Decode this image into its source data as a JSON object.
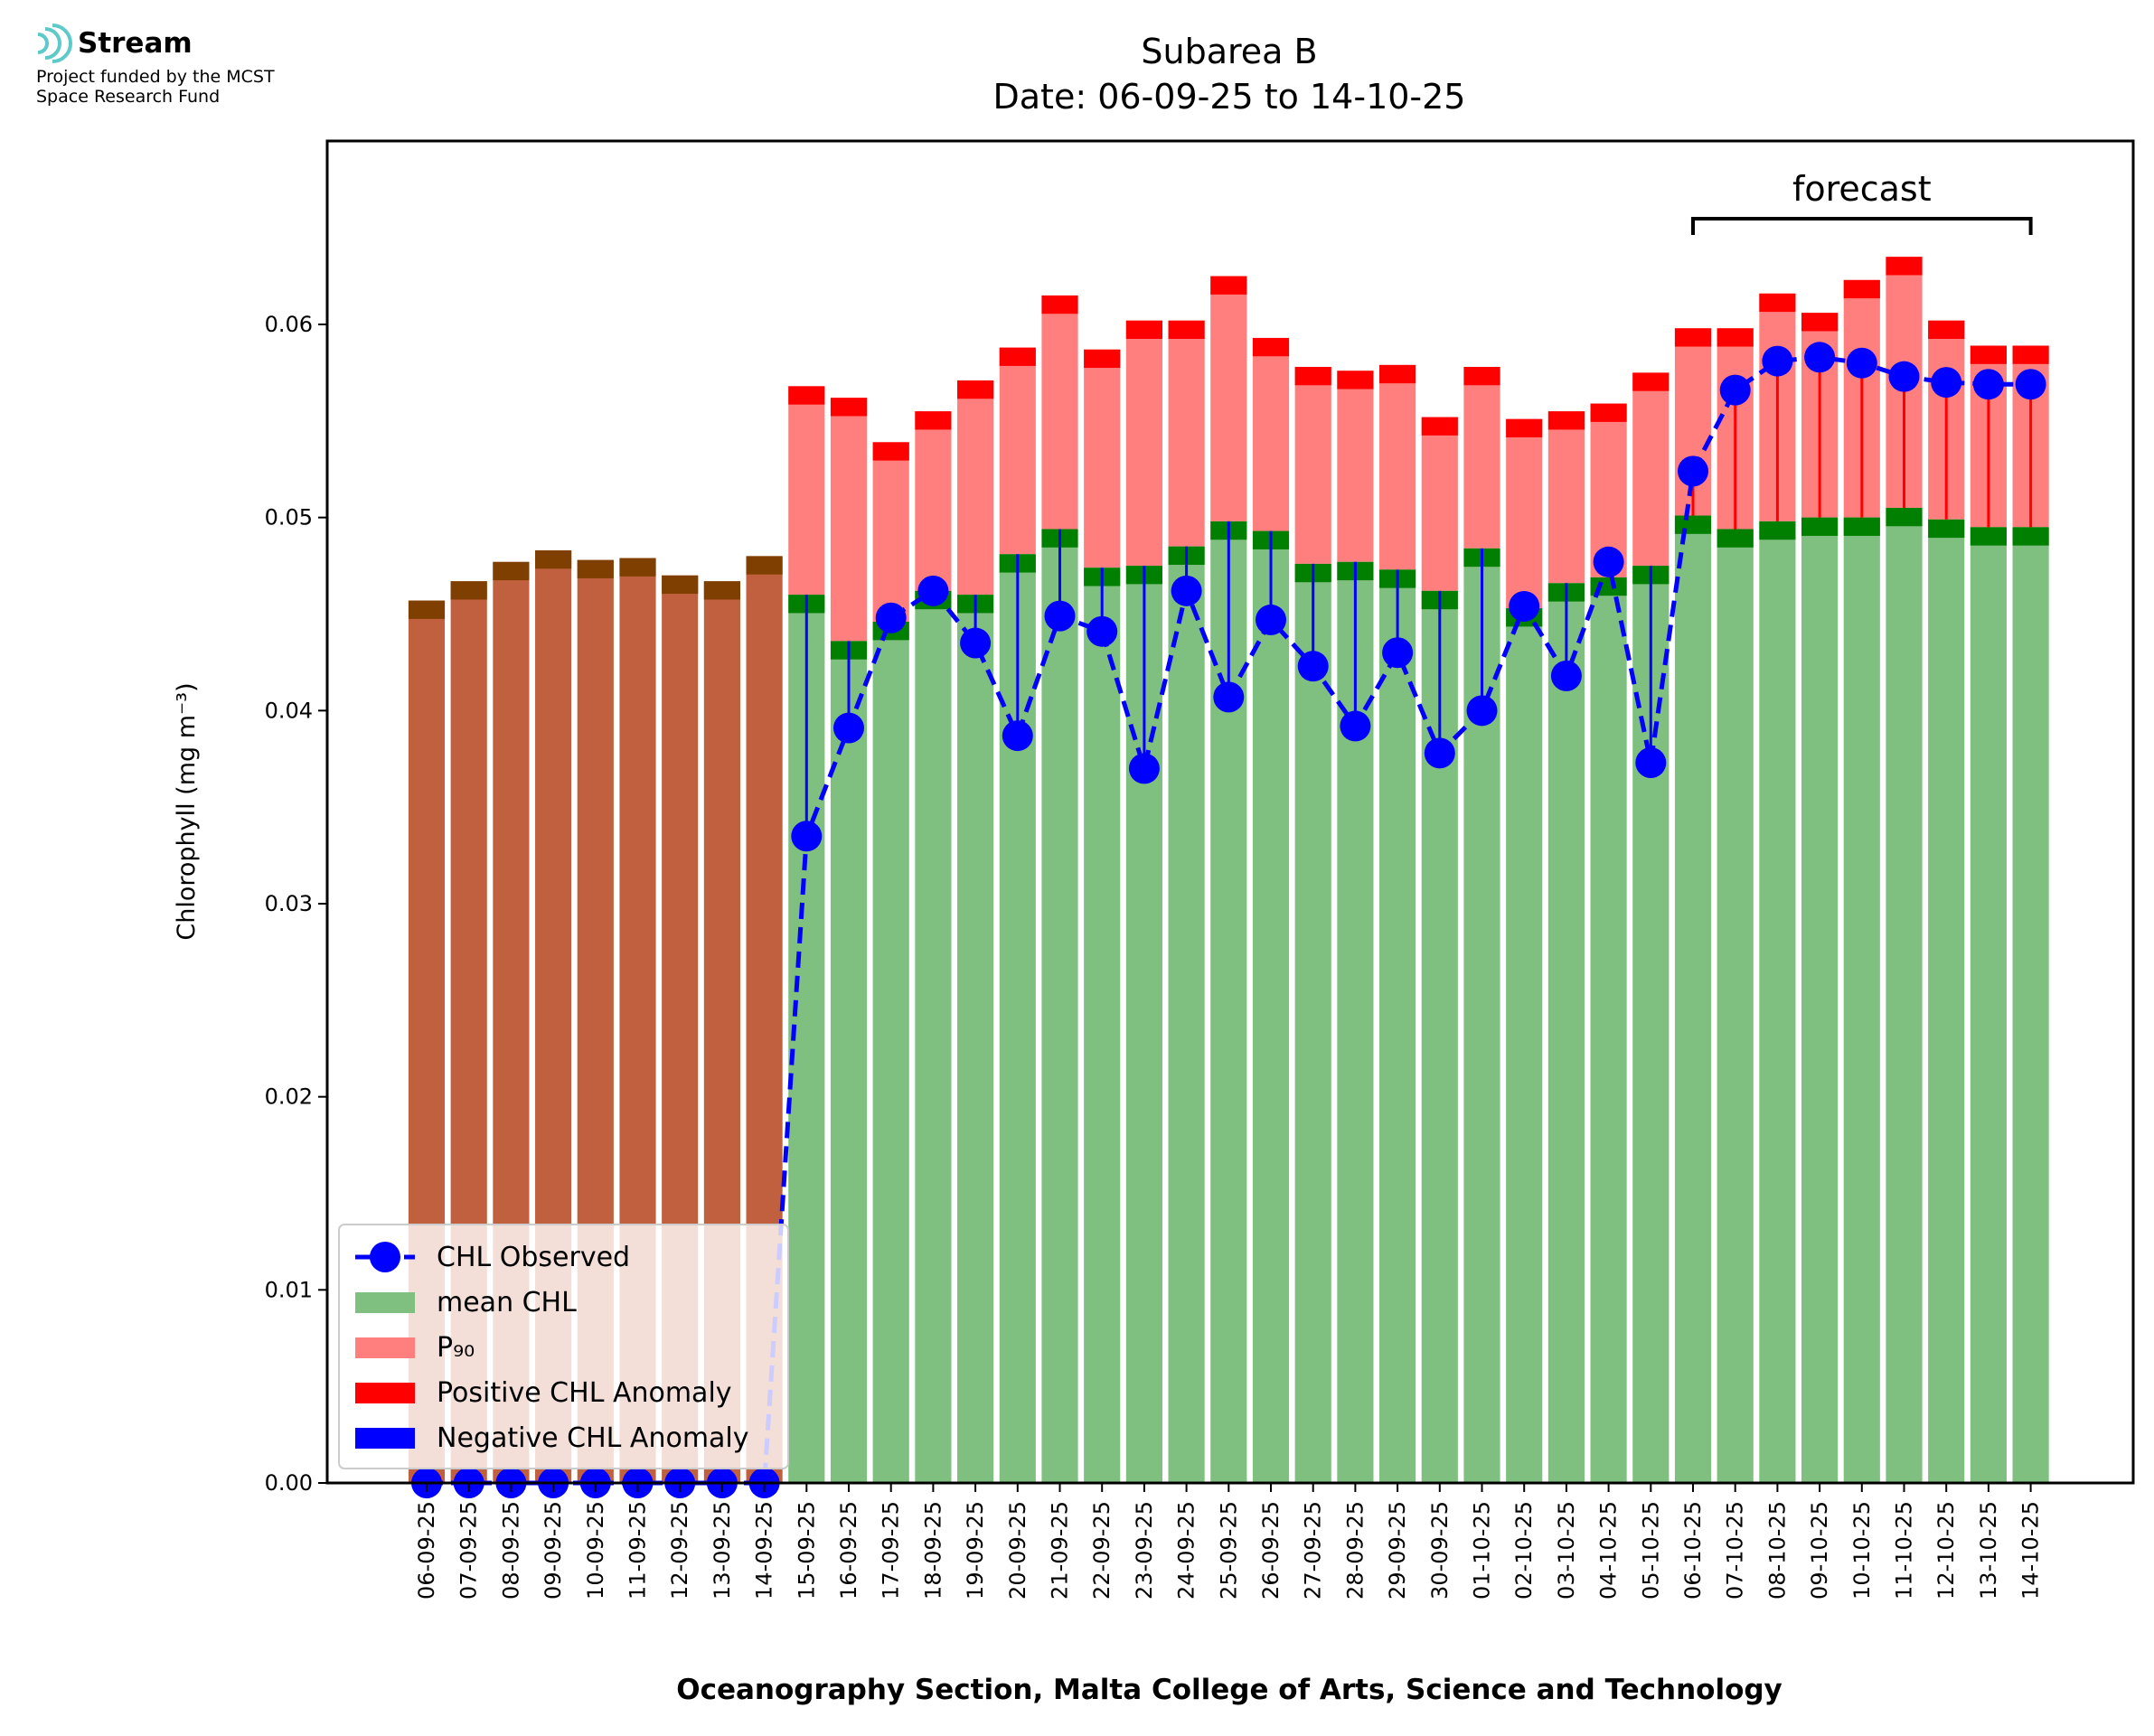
{
  "logo": {
    "name": "Stream",
    "line1": "Project funded by the MCST",
    "line2": "Space Research Fund",
    "color": "#5ec9c9"
  },
  "chart_data": {
    "type": "bar",
    "title": "Subarea B",
    "subtitle": "Date: 06-09-25 to 14-10-25",
    "xlabel": "Oceanography Section, Malta College of Arts, Science and Technology",
    "ylabel": "Chlorophyll (mg m⁻³)",
    "ylim": [
      0,
      0.0695
    ],
    "yticks": [
      "0.00",
      "0.01",
      "0.02",
      "0.03",
      "0.04",
      "0.05",
      "0.06"
    ],
    "categories": [
      "06-09-25",
      "07-09-25",
      "08-09-25",
      "09-09-25",
      "10-09-25",
      "11-09-25",
      "12-09-25",
      "13-09-25",
      "14-09-25",
      "15-09-25",
      "16-09-25",
      "17-09-25",
      "18-09-25",
      "19-09-25",
      "20-09-25",
      "21-09-25",
      "22-09-25",
      "23-09-25",
      "24-09-25",
      "25-09-25",
      "26-09-25",
      "27-09-25",
      "28-09-25",
      "29-09-25",
      "30-09-25",
      "01-10-25",
      "02-10-25",
      "03-10-25",
      "04-10-25",
      "05-10-25",
      "06-10-25",
      "07-10-25",
      "08-10-25",
      "09-10-25",
      "10-10-25",
      "11-10-25",
      "12-10-25",
      "13-10-25",
      "14-10-25"
    ],
    "series": [
      {
        "name": "CHL Observed",
        "color": "#0000ff",
        "values": [
          0,
          0,
          0,
          0,
          0,
          0,
          0,
          0,
          0,
          0.0335,
          0.0391,
          0.0448,
          0.0462,
          0.0435,
          0.0387,
          0.0449,
          0.0441,
          0.037,
          0.0462,
          0.0407,
          0.0447,
          0.0423,
          0.0392,
          0.043,
          0.0378,
          0.04,
          0.0454,
          0.0418,
          0.0477,
          0.0373,
          0.0524,
          0.0566,
          0.0581,
          0.0583,
          0.058,
          0.0573,
          0.057,
          0.0569,
          0.0569
        ]
      },
      {
        "name": "mean CHL",
        "color": "#7fbf7f",
        "values": [
          0,
          0,
          0,
          0,
          0,
          0,
          0,
          0,
          0,
          0.046,
          0.0436,
          0.0446,
          0.0462,
          0.046,
          0.0481,
          0.0494,
          0.0474,
          0.0475,
          0.0485,
          0.0498,
          0.0493,
          0.0476,
          0.0477,
          0.0473,
          0.0462,
          0.0484,
          0.0453,
          0.0466,
          0.0469,
          0.0475,
          0.0501,
          0.0494,
          0.0498,
          0.05,
          0.05,
          0.0505,
          0.0499,
          0.0495,
          0.0495
        ]
      },
      {
        "name": "P₉₀",
        "color": "#ff7f7f",
        "values": [
          0.0457,
          0.0467,
          0.0477,
          0.0483,
          0.0478,
          0.0479,
          0.047,
          0.0467,
          0.048,
          0.0568,
          0.0562,
          0.0539,
          0.0555,
          0.0571,
          0.0588,
          0.0615,
          0.0587,
          0.0602,
          0.0602,
          0.0625,
          0.0593,
          0.0578,
          0.0576,
          0.0579,
          0.0552,
          0.0578,
          0.0551,
          0.0555,
          0.0559,
          0.0575,
          0.0598,
          0.0598,
          0.0616,
          0.0606,
          0.0623,
          0.0635,
          0.0602,
          0.0589,
          0.0589
        ]
      },
      {
        "name": "Positive CHL Anomaly",
        "color": "#ff0000"
      },
      {
        "name": "Negative CHL Anomaly",
        "color": "#0000ff"
      }
    ],
    "highlighted_historical_color": "#c0603e",
    "historical_cap_color": "#7f3f00",
    "mean_cap_color": "#007f00",
    "annotation": "forecast",
    "forecast_range": [
      "06-10-25",
      "14-10-25"
    ],
    "legend_position": "lower-left",
    "grid": false
  }
}
